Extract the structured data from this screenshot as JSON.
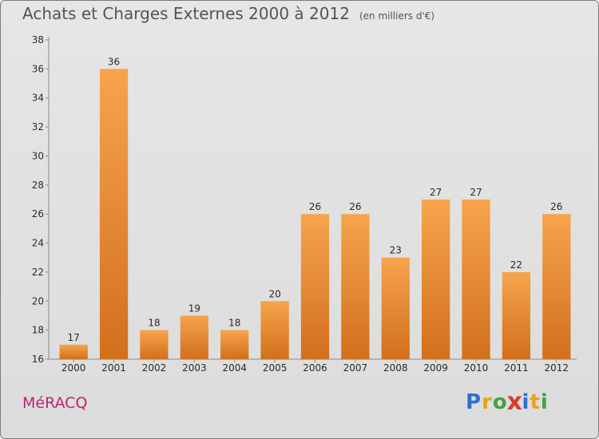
{
  "title": "Achats et Charges Externes 2000 à 2012",
  "unit_label": "(en milliers d'€)",
  "commune": "MéRACQ",
  "logo": {
    "letters": [
      "P",
      "r",
      "o",
      "x",
      "i",
      "t",
      "i"
    ],
    "colors": [
      "#2f6fd0",
      "#e8a21b",
      "#43a047",
      "#d63c2e",
      "#2f6fd0",
      "#e8a21b",
      "#43a047"
    ]
  },
  "chart_data": {
    "type": "bar",
    "categories": [
      "2000",
      "2001",
      "2002",
      "2003",
      "2004",
      "2005",
      "2006",
      "2007",
      "2008",
      "2009",
      "2010",
      "2011",
      "2012"
    ],
    "values": [
      17,
      36,
      18,
      19,
      18,
      20,
      26,
      26,
      23,
      27,
      27,
      22,
      26
    ],
    "ylim": [
      16,
      38
    ],
    "yticks": [
      16,
      18,
      20,
      22,
      24,
      26,
      28,
      30,
      32,
      34,
      36,
      38
    ],
    "grid": false,
    "bar_color": "#f0963c",
    "bar_color_dark": "#d4721f"
  }
}
